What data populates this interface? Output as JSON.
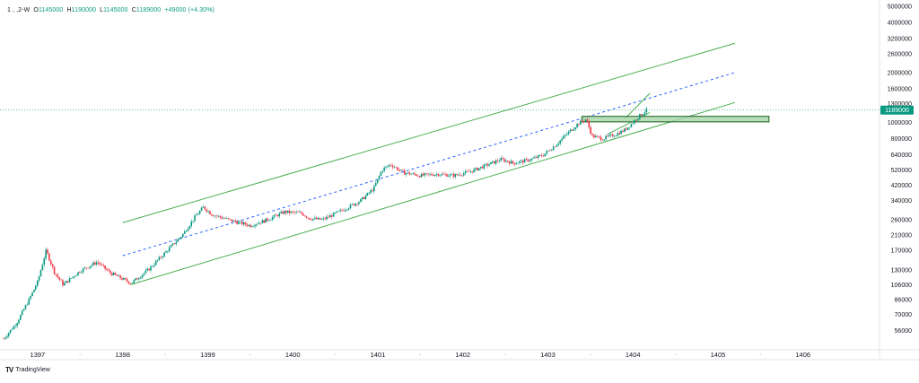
{
  "legend": {
    "symbol": "1 , ,2-W",
    "open_label": "O",
    "open": "1145000",
    "high_label": "H",
    "high": "1190000",
    "low_label": "L",
    "low": "1145000",
    "close_label": "C",
    "close": "1189000",
    "change": "+49000 (+4.30%)"
  },
  "branding": {
    "text": "TradingView",
    "logo": "TV"
  },
  "price_tag": "1189000",
  "colors": {
    "up": "#089981",
    "down": "#f23645",
    "channel": "#4caf50",
    "midline": "#2962ff",
    "zone_fill": "#a5d6a7",
    "tag": "#089981"
  },
  "chart_data": {
    "type": "candlestick",
    "y_scale": "log",
    "ylim": [
      44000,
      5200000
    ],
    "y_ticks": [
      56000,
      70000,
      86000,
      106000,
      130000,
      170000,
      210000,
      260000,
      340000,
      420000,
      520000,
      640000,
      800000,
      1000000,
      1300000,
      1600000,
      2000000,
      2600000,
      3200000,
      4000000,
      5000000
    ],
    "x_labels": [
      "1397",
      "1398",
      "1399",
      "1400",
      "1401",
      "1402",
      "1403",
      "1404",
      "1405",
      "1406"
    ],
    "x_minor_labels": [
      "ᵒ",
      "ᵒ",
      "ᵒ",
      "ᵒ",
      "ᵒ",
      "ᵒ",
      "ᵒ",
      "ᵒ",
      "ᵒ",
      "ᵒ"
    ],
    "x_range": [
      1396.6,
      1406.9
    ],
    "last_price": 1189000,
    "path_points": [
      [
        1396.6,
        50000
      ],
      [
        1396.75,
        62000
      ],
      [
        1396.9,
        86000
      ],
      [
        1397.0,
        110000
      ],
      [
        1397.1,
        170000
      ],
      [
        1397.2,
        125000
      ],
      [
        1397.3,
        106000
      ],
      [
        1397.5,
        128000
      ],
      [
        1397.7,
        145000
      ],
      [
        1397.85,
        125000
      ],
      [
        1398.1,
        108000
      ],
      [
        1398.3,
        130000
      ],
      [
        1398.5,
        165000
      ],
      [
        1398.7,
        210000
      ],
      [
        1398.85,
        270000
      ],
      [
        1398.95,
        310000
      ],
      [
        1399.05,
        280000
      ],
      [
        1399.3,
        255000
      ],
      [
        1399.5,
        240000
      ],
      [
        1399.7,
        260000
      ],
      [
        1399.9,
        290000
      ],
      [
        1400.1,
        285000
      ],
      [
        1400.2,
        265000
      ],
      [
        1400.35,
        260000
      ],
      [
        1400.6,
        300000
      ],
      [
        1400.8,
        340000
      ],
      [
        1400.95,
        400000
      ],
      [
        1401.05,
        520000
      ],
      [
        1401.15,
        560000
      ],
      [
        1401.3,
        500000
      ],
      [
        1401.5,
        480000
      ],
      [
        1401.7,
        490000
      ],
      [
        1401.9,
        480000
      ],
      [
        1402.1,
        510000
      ],
      [
        1402.3,
        560000
      ],
      [
        1402.45,
        600000
      ],
      [
        1402.6,
        570000
      ],
      [
        1402.8,
        600000
      ],
      [
        1402.95,
        640000
      ],
      [
        1403.1,
        740000
      ],
      [
        1403.25,
        880000
      ],
      [
        1403.35,
        980000
      ],
      [
        1403.45,
        1050000
      ],
      [
        1403.52,
        830000
      ],
      [
        1403.65,
        800000
      ],
      [
        1403.8,
        850000
      ],
      [
        1403.9,
        900000
      ],
      [
        1404.0,
        1000000
      ],
      [
        1404.08,
        1100000
      ],
      [
        1404.12,
        1140000
      ],
      [
        1404.16,
        1189000
      ]
    ],
    "channel": {
      "upper": [
        [
          1398.0,
          250000
        ],
        [
          1405.2,
          3000000
        ]
      ],
      "mid": [
        [
          1398.0,
          158000
        ],
        [
          1405.2,
          2000000
        ]
      ],
      "lower": [
        [
          1398.1,
          106000
        ],
        [
          1405.2,
          1320000
        ]
      ],
      "short_upper": [
        [
          1403.9,
          1050000
        ],
        [
          1404.2,
          1500000
        ]
      ],
      "short_lower": [
        [
          1403.7,
          850000
        ],
        [
          1404.2,
          1150000
        ]
      ]
    },
    "zone": {
      "x": [
        1403.4,
        1405.6
      ],
      "y": [
        1010000,
        1090000
      ]
    }
  }
}
